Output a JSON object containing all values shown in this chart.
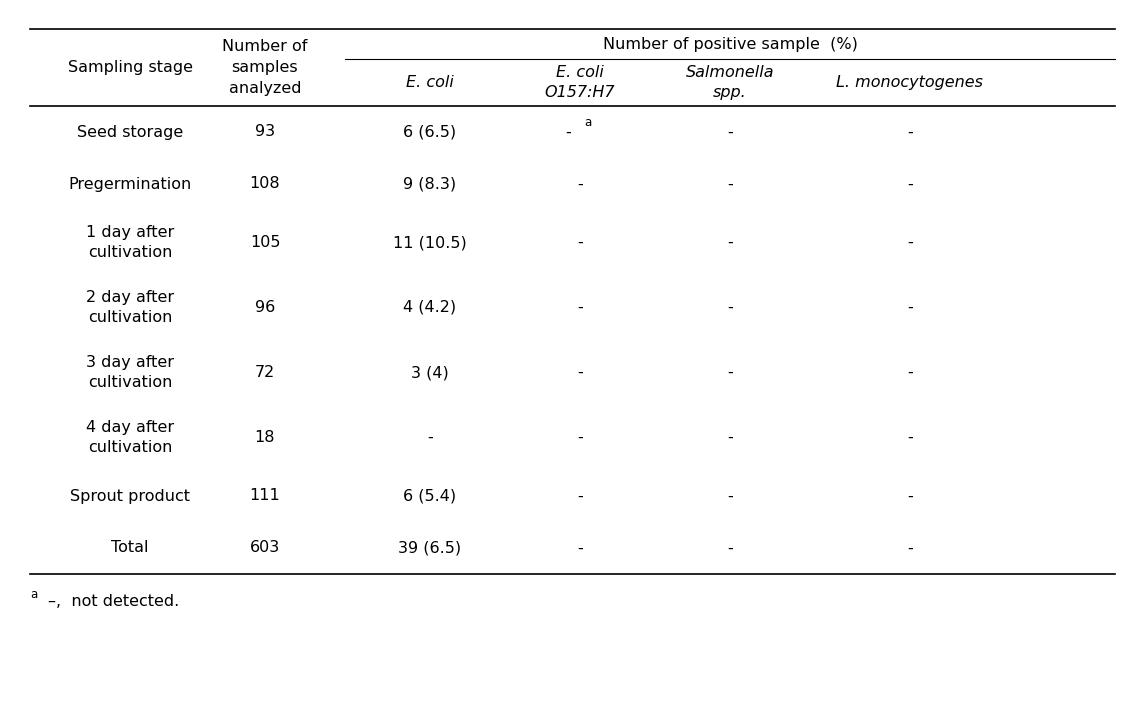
{
  "title": "Number of positive sample  (%)",
  "col_headers_left": [
    "Sampling stage",
    "Number of\nsamples\nanalyzed"
  ],
  "col_headers_right": [
    "E. coli",
    "E. coli\nO157:H7",
    "Salmonella\nspp.",
    "L. monocytogenes"
  ],
  "rows": [
    [
      "Seed storage",
      "93",
      "6 (6.5)",
      "- a",
      "-",
      "-"
    ],
    [
      "Pregermination",
      "108",
      "9 (8.3)",
      "-",
      "-",
      "-"
    ],
    [
      "1 day after\ncultivation",
      "105",
      "11 (10.5)",
      "-",
      "-",
      "-"
    ],
    [
      "2 day after\ncultivation",
      "96",
      "4 (4.2)",
      "-",
      "-",
      "-"
    ],
    [
      "3 day after\ncultivation",
      "72",
      "3 (4)",
      "-",
      "-",
      "-"
    ],
    [
      "4 day after\ncultivation",
      "18",
      "-",
      "-",
      "-",
      "-"
    ],
    [
      "Sprout product",
      "111",
      "6 (5.4)",
      "-",
      "-",
      "-"
    ],
    [
      "Total",
      "603",
      "39 (6.5)",
      "-",
      "-",
      "-"
    ]
  ],
  "background_color": "#ffffff",
  "text_color": "#000000",
  "font_size": 11.5,
  "line_color": "#000000"
}
